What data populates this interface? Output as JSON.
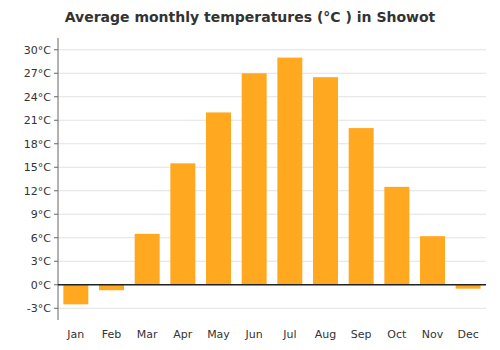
{
  "chart_data": {
    "type": "bar",
    "title": "Average monthly temperatures (°C ) in Showot",
    "categories": [
      "Jan",
      "Feb",
      "Mar",
      "Apr",
      "May",
      "Jun",
      "Jul",
      "Aug",
      "Sep",
      "Oct",
      "Nov",
      "Dec"
    ],
    "values": [
      -2.5,
      -0.7,
      6.5,
      15.5,
      22.0,
      27.0,
      29.0,
      26.5,
      20.0,
      12.5,
      6.2,
      -0.5
    ],
    "color": "#FFA820",
    "ylim": [
      -4.5,
      31.5
    ],
    "yticks": [
      {
        "value": -3,
        "label": "-3°C"
      },
      {
        "value": 0,
        "label": "0°C"
      },
      {
        "value": 3,
        "label": "3°C"
      },
      {
        "value": 6,
        "label": "6°C"
      },
      {
        "value": 9,
        "label": "9°C"
      },
      {
        "value": 12,
        "label": "12°C"
      },
      {
        "value": 15,
        "label": "15°C"
      },
      {
        "value": 18,
        "label": "18°C"
      },
      {
        "value": 21,
        "label": "21°C"
      },
      {
        "value": 24,
        "label": "24°C"
      },
      {
        "value": 27,
        "label": "27°C"
      },
      {
        "value": 30,
        "label": "30°C"
      }
    ],
    "grid": true
  }
}
